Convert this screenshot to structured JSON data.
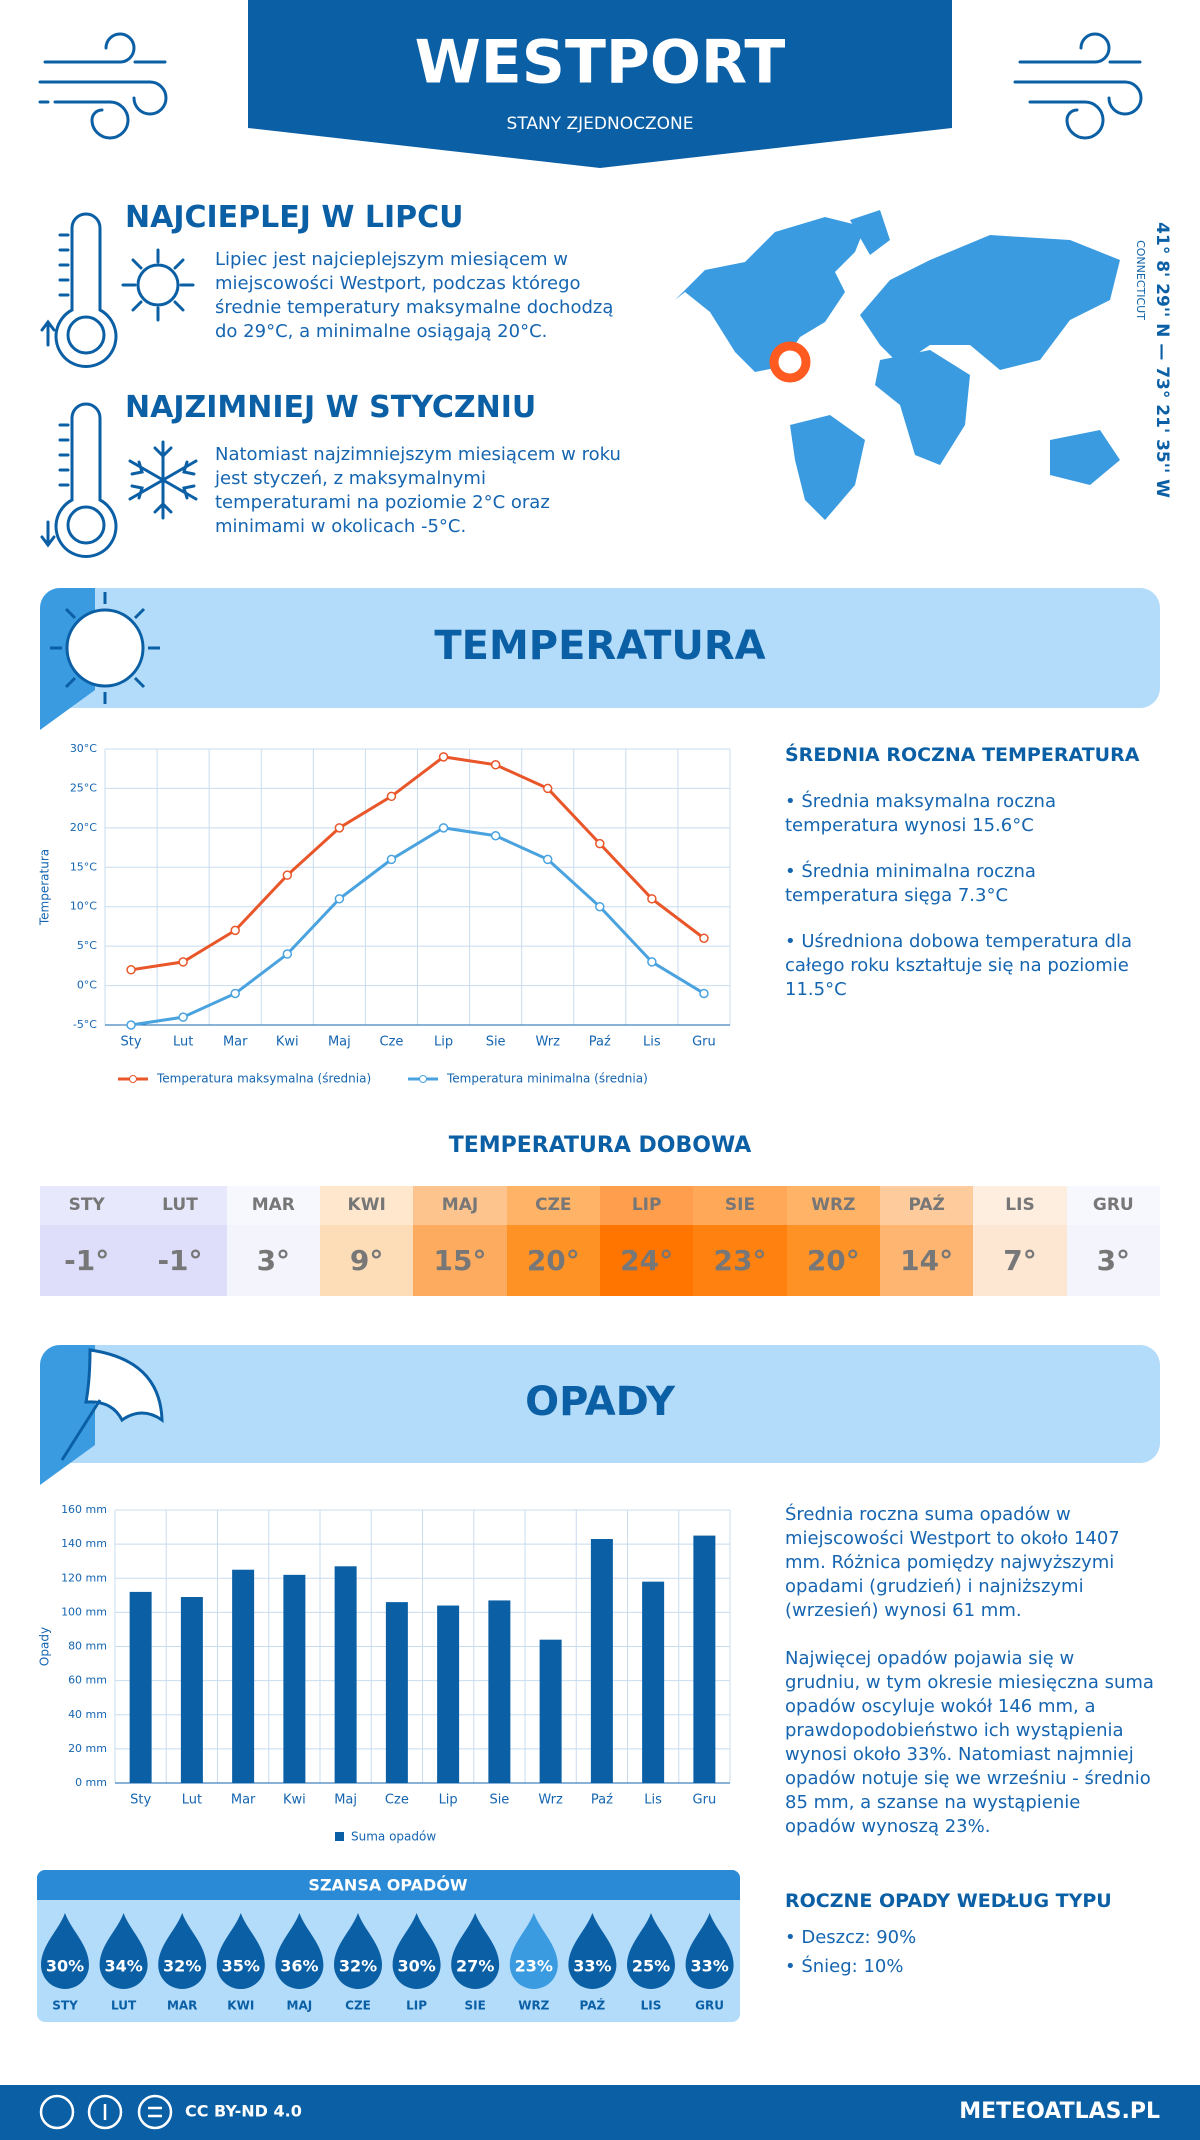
{
  "header": {
    "title": "WESTPORT",
    "subtitle": "STANY ZJEDNOCZONE"
  },
  "warmest": {
    "title": "NAJCIEPLEJ W LIPCU",
    "text": "Lipiec jest najcieplejszym miesiącem w miejscowości Westport, podczas którego średnie temperatury maksymalne dochodzą do 29°C, a minimalne osiągają 20°C."
  },
  "coldest": {
    "title": "NAJZIMNIEJ W STYCZNIU",
    "text": "Natomiast najzimniejszym miesiącem w roku jest styczeń, z maksymalnymi temperaturami na poziomie 2°C oraz minimami w okolicach -5°C."
  },
  "location": {
    "coordinates": "41° 8' 29'' N — 73° 21' 35'' W",
    "region": "CONNECTICUT"
  },
  "temperature_section": {
    "title": "TEMPERATURA"
  },
  "precip_section": {
    "title": "OPADY"
  },
  "chart_data": [
    {
      "type": "line",
      "y_label": "Temperatura",
      "categories": [
        "Sty",
        "Lut",
        "Mar",
        "Kwi",
        "Maj",
        "Cze",
        "Lip",
        "Sie",
        "Wrz",
        "Paź",
        "Lis",
        "Gru"
      ],
      "series": [
        {
          "name": "Temperatura maksymalna (średnia)",
          "color": "#e8562a",
          "values": [
            2,
            3,
            7,
            14,
            20,
            24,
            29,
            28,
            25,
            18,
            11,
            6
          ]
        },
        {
          "name": "Temperatura minimalna (średnia)",
          "color": "#4aa3df",
          "values": [
            -5,
            -4,
            -1,
            4,
            11,
            16,
            20,
            19,
            16,
            10,
            3,
            -1
          ]
        }
      ],
      "ylim": [
        -5,
        30
      ],
      "yticks": [
        {
          "value": -5,
          "label": "-5°C"
        },
        {
          "value": 0,
          "label": "0°C"
        },
        {
          "value": 5,
          "label": "5°C"
        },
        {
          "value": 10,
          "label": "10°C"
        },
        {
          "value": 15,
          "label": "15°C"
        },
        {
          "value": 20,
          "label": "20°C"
        },
        {
          "value": 25,
          "label": "25°C"
        },
        {
          "value": 30,
          "label": "30°C"
        }
      ],
      "grid": true,
      "legend": "bottom"
    },
    {
      "type": "bar",
      "y_label": "Opady",
      "categories": [
        "Sty",
        "Lut",
        "Mar",
        "Kwi",
        "Maj",
        "Cze",
        "Lip",
        "Sie",
        "Wrz",
        "Paź",
        "Lis",
        "Gru"
      ],
      "series": [
        {
          "name": "Suma opadów",
          "color": "#0b5fa5",
          "values": [
            112,
            109,
            125,
            122,
            127,
            106,
            104,
            107,
            84,
            143,
            118,
            145
          ]
        }
      ],
      "ylim": [
        0,
        160
      ],
      "yticks": [
        {
          "value": 0,
          "label": "0 mm"
        },
        {
          "value": 20,
          "label": "20 mm"
        },
        {
          "value": 40,
          "label": "40 mm"
        },
        {
          "value": 60,
          "label": "60 mm"
        },
        {
          "value": 80,
          "label": "80 mm"
        },
        {
          "value": 100,
          "label": "100 mm"
        },
        {
          "value": 120,
          "label": "120 mm"
        },
        {
          "value": 140,
          "label": "140 mm"
        },
        {
          "value": 160,
          "label": "160 mm"
        }
      ],
      "grid": true,
      "legend": "bottom"
    }
  ],
  "annual_temperature": {
    "title": "ŚREDNIA ROCZNA TEMPERATURA",
    "items": [
      "• Średnia maksymalna roczna temperatura wynosi 15.6°C",
      "• Średnia minimalna roczna temperatura sięga 7.3°C",
      "• Uśredniona dobowa temperatura dla całego roku kształtuje się na poziomie 11.5°C"
    ]
  },
  "daily": {
    "title": "TEMPERATURA DOBOWA",
    "months": [
      "STY",
      "LUT",
      "MAR",
      "KWI",
      "MAJ",
      "CZE",
      "LIP",
      "SIE",
      "WRZ",
      "PAŹ",
      "LIS",
      "GRU"
    ],
    "temps": [
      "-1°",
      "-1°",
      "3°",
      "9°",
      "15°",
      "20°",
      "24°",
      "23°",
      "20°",
      "14°",
      "7°",
      "3°"
    ],
    "colors": [
      "#dedefa",
      "#dedefa",
      "#f4f4fd",
      "#fddcb8",
      "#fdab5e",
      "#fe9225",
      "#ff7500",
      "#ff8210",
      "#fe9225",
      "#fdb571",
      "#fde7d2",
      "#f4f4fd"
    ]
  },
  "precip_text": [
    "Średnia roczna suma opadów w miejscowości Westport to około 1407 mm. Różnica pomiędzy najwyższymi opadami (grudzień) i najniższymi (wrzesień) wynosi 61 mm.",
    "Najwięcej opadów pojawia się w grudniu, w tym okresie miesięczna suma opadów oscyluje wokół 146 mm, a prawdopodobieństwo ich wystąpienia wynosi około 33%. Natomiast najmniej opadów notuje się we wrześniu - średnio 85 mm, a szanse na wystąpienie opadów wynoszą 23%."
  ],
  "chance": {
    "title": "SZANSA OPADÓW",
    "months": [
      "STY",
      "LUT",
      "MAR",
      "KWI",
      "MAJ",
      "CZE",
      "LIP",
      "SIE",
      "WRZ",
      "PAŹ",
      "LIS",
      "GRU"
    ],
    "values": [
      "30%",
      "34%",
      "32%",
      "35%",
      "36%",
      "32%",
      "30%",
      "27%",
      "23%",
      "33%",
      "25%",
      "33%"
    ],
    "colors": [
      "#0b5fa5",
      "#0b5fa5",
      "#0b5fa5",
      "#0b5fa5",
      "#0b5fa5",
      "#0b5fa5",
      "#0b5fa5",
      "#0b5fa5",
      "#3a9be0",
      "#0b5fa5",
      "#0b5fa5",
      "#0b5fa5"
    ]
  },
  "precip_types": {
    "title": "ROCZNE OPADY WEDŁUG TYPU",
    "items": [
      "• Deszcz: 90%",
      "• Śnieg: 10%"
    ]
  },
  "footer": {
    "license": "CC BY-ND 4.0",
    "site": "METEOATLAS.PL"
  }
}
